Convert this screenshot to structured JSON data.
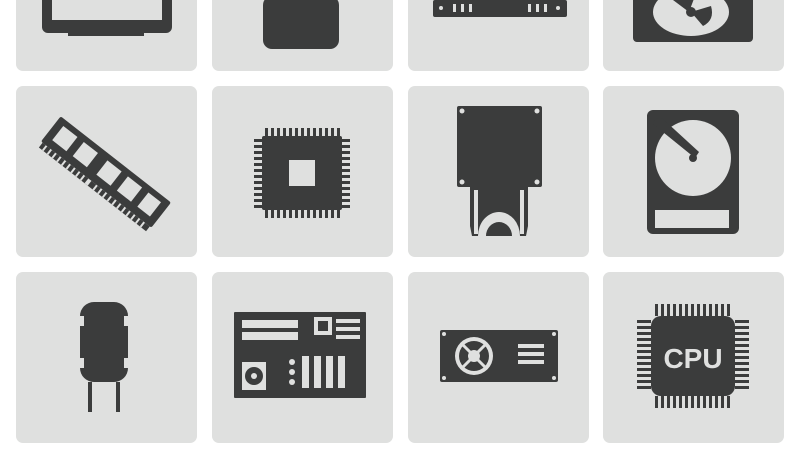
{
  "icons": [
    {
      "id": "monitor",
      "name": "monitor-icon"
    },
    {
      "id": "device",
      "name": "device-icon"
    },
    {
      "id": "router",
      "name": "router-icon"
    },
    {
      "id": "fan-case",
      "name": "fan-case-icon"
    },
    {
      "id": "ram",
      "name": "ram-module-icon"
    },
    {
      "id": "chip",
      "name": "chip-icon"
    },
    {
      "id": "optical-drive",
      "name": "optical-drive-icon"
    },
    {
      "id": "hard-drive",
      "name": "hard-drive-icon"
    },
    {
      "id": "capacitor",
      "name": "capacitor-icon"
    },
    {
      "id": "motherboard",
      "name": "motherboard-icon"
    },
    {
      "id": "power-supply",
      "name": "power-supply-icon"
    },
    {
      "id": "cpu",
      "name": "cpu-icon",
      "label": "CPU"
    }
  ],
  "colors": {
    "tile": "#dfe0df",
    "icon": "#3b3c3c",
    "background": "#ffffff"
  }
}
